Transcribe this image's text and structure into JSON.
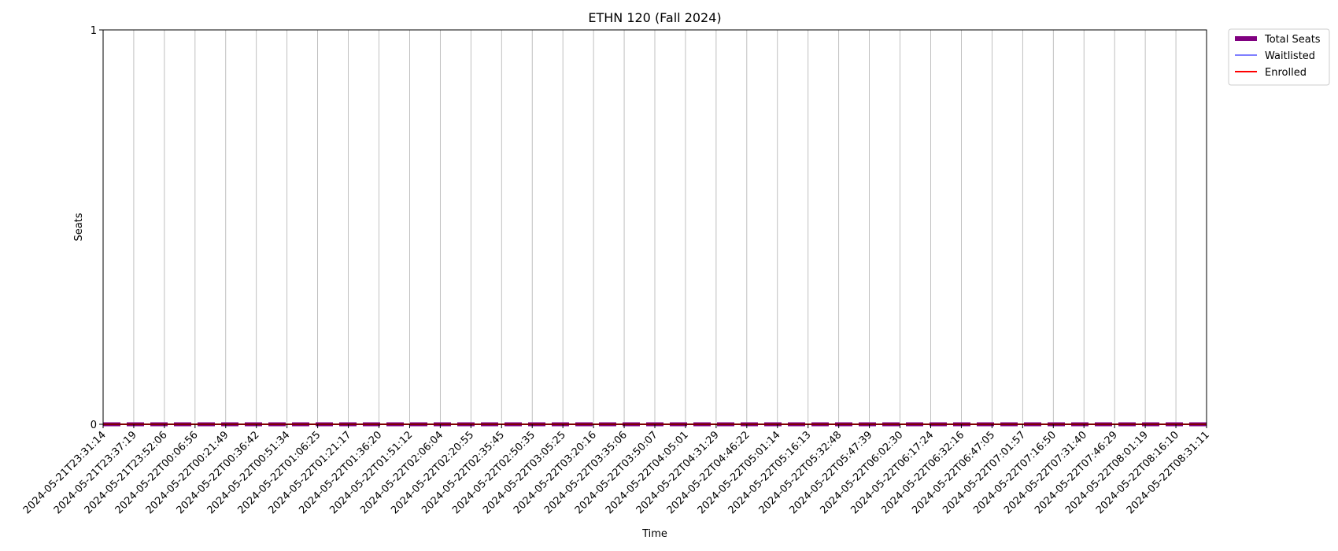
{
  "chart_data": {
    "type": "line",
    "title": "ETHN 120 (Fall 2024)",
    "xlabel": "Time",
    "ylabel": "Seats",
    "ylim": [
      0,
      1
    ],
    "yticks": [
      "0",
      "1"
    ],
    "grid": "vertical",
    "legend_position": "outside-top-right",
    "x": [
      "2024-05-21T23:31:14",
      "2024-05-21T23:37:19",
      "2024-05-21T23:52:06",
      "2024-05-22T00:06:56",
      "2024-05-22T00:21:49",
      "2024-05-22T00:36:42",
      "2024-05-22T00:51:34",
      "2024-05-22T01:06:25",
      "2024-05-22T01:21:17",
      "2024-05-22T01:36:20",
      "2024-05-22T01:51:12",
      "2024-05-22T02:06:04",
      "2024-05-22T02:20:55",
      "2024-05-22T02:35:45",
      "2024-05-22T02:50:35",
      "2024-05-22T03:05:25",
      "2024-05-22T03:20:16",
      "2024-05-22T03:35:06",
      "2024-05-22T03:50:07",
      "2024-05-22T04:05:01",
      "2024-05-22T04:31:29",
      "2024-05-22T04:46:22",
      "2024-05-22T05:01:14",
      "2024-05-22T05:16:13",
      "2024-05-22T05:32:48",
      "2024-05-22T05:47:39",
      "2024-05-22T06:02:30",
      "2024-05-22T06:17:24",
      "2024-05-22T06:32:16",
      "2024-05-22T06:47:05",
      "2024-05-22T07:01:57",
      "2024-05-22T07:16:50",
      "2024-05-22T07:31:40",
      "2024-05-22T07:46:29",
      "2024-05-22T08:01:19",
      "2024-05-22T08:16:10",
      "2024-05-22T08:31:11"
    ],
    "series": [
      {
        "name": "Total Seats",
        "color": "#800080",
        "style": "dashed-thick",
        "values": [
          0,
          0,
          0,
          0,
          0,
          0,
          0,
          0,
          0,
          0,
          0,
          0,
          0,
          0,
          0,
          0,
          0,
          0,
          0,
          0,
          0,
          0,
          0,
          0,
          0,
          0,
          0,
          0,
          0,
          0,
          0,
          0,
          0,
          0,
          0,
          0,
          0
        ]
      },
      {
        "name": "Waitlisted",
        "color": "#3333ff",
        "style": "solid-thin",
        "values": [
          0,
          0,
          0,
          0,
          0,
          0,
          0,
          0,
          0,
          0,
          0,
          0,
          0,
          0,
          0,
          0,
          0,
          0,
          0,
          0,
          0,
          0,
          0,
          0,
          0,
          0,
          0,
          0,
          0,
          0,
          0,
          0,
          0,
          0,
          0,
          0,
          0
        ]
      },
      {
        "name": "Enrolled",
        "color": "#ff0000",
        "style": "solid",
        "values": [
          0,
          0,
          0,
          0,
          0,
          0,
          0,
          0,
          0,
          0,
          0,
          0,
          0,
          0,
          0,
          0,
          0,
          0,
          0,
          0,
          0,
          0,
          0,
          0,
          0,
          0,
          0,
          0,
          0,
          0,
          0,
          0,
          0,
          0,
          0,
          0,
          0
        ]
      }
    ]
  }
}
